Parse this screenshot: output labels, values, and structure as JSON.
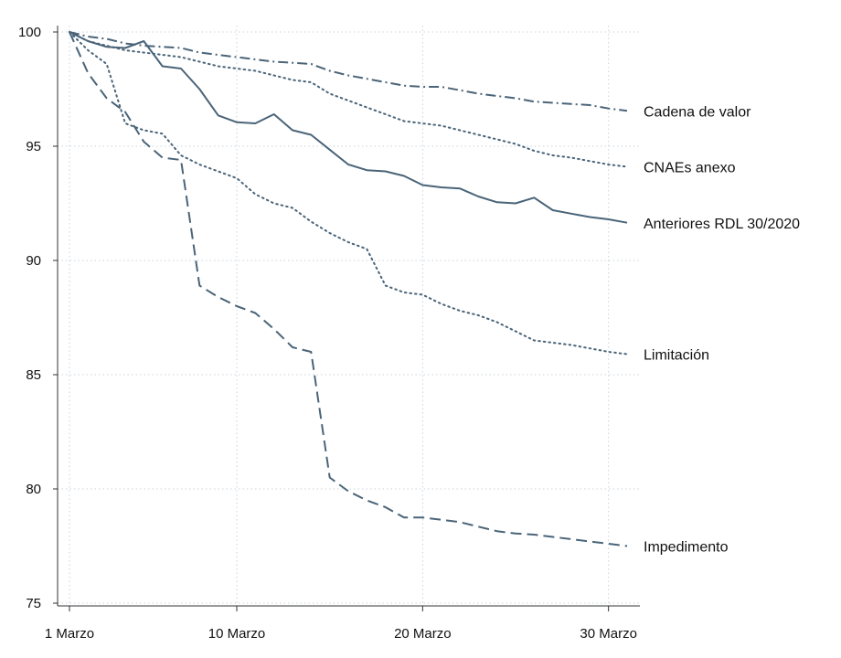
{
  "chart_data": {
    "type": "line",
    "title": "",
    "xlabel": "",
    "ylabel": "",
    "xlim": [
      1,
      31
    ],
    "ylim": [
      75,
      100
    ],
    "yticks": [
      75,
      80,
      85,
      90,
      95,
      100
    ],
    "xticks": [
      {
        "value": 1,
        "label": "1 Marzo"
      },
      {
        "value": 10,
        "label": "10 Marzo"
      },
      {
        "value": 20,
        "label": "20 Marzo"
      },
      {
        "value": 30,
        "label": "30 Marzo"
      }
    ],
    "grid": true,
    "legend": "labels at right end of lines",
    "series_color": "#4a6478",
    "x": [
      1,
      2,
      3,
      4,
      5,
      6,
      7,
      8,
      9,
      10,
      11,
      12,
      13,
      14,
      15,
      16,
      17,
      18,
      19,
      20,
      21,
      22,
      23,
      24,
      25,
      26,
      27,
      28,
      29,
      30,
      31
    ],
    "series": [
      {
        "name": "Cadena de valor",
        "style": "dashdot",
        "values": [
          100,
          99.8,
          99.7,
          99.5,
          99.4,
          99.35,
          99.3,
          99.1,
          99.0,
          98.9,
          98.8,
          98.7,
          98.65,
          98.6,
          98.3,
          98.1,
          97.95,
          97.8,
          97.65,
          97.6,
          97.6,
          97.45,
          97.3,
          97.2,
          97.1,
          96.95,
          96.9,
          96.85,
          96.8,
          96.65,
          96.55
        ]
      },
      {
        "name": "CNAEs anexo",
        "style": "dotted",
        "values": [
          100,
          99.6,
          99.4,
          99.2,
          99.1,
          99.0,
          98.9,
          98.7,
          98.5,
          98.4,
          98.3,
          98.1,
          97.9,
          97.8,
          97.3,
          97.0,
          96.7,
          96.4,
          96.1,
          96.0,
          95.9,
          95.7,
          95.5,
          95.3,
          95.1,
          94.8,
          94.6,
          94.5,
          94.35,
          94.2,
          94.1
        ]
      },
      {
        "name": "Anteriores RDL 30/2020",
        "style": "solid",
        "values": [
          100,
          99.6,
          99.35,
          99.3,
          99.6,
          98.5,
          98.4,
          97.5,
          96.35,
          96.05,
          96.0,
          96.4,
          95.7,
          95.5,
          94.85,
          94.2,
          93.95,
          93.9,
          93.7,
          93.3,
          93.2,
          93.15,
          92.8,
          92.55,
          92.5,
          92.75,
          92.2,
          92.05,
          91.9,
          91.8,
          91.65
        ]
      },
      {
        "name": "Limitación",
        "style": "dotted",
        "values": [
          100,
          99.2,
          98.6,
          96.0,
          95.7,
          95.55,
          94.6,
          94.2,
          93.9,
          93.6,
          92.9,
          92.5,
          92.3,
          91.7,
          91.2,
          90.8,
          90.5,
          88.9,
          88.6,
          88.5,
          88.1,
          87.8,
          87.6,
          87.3,
          86.9,
          86.5,
          86.4,
          86.3,
          86.15,
          86.0,
          85.9
        ]
      },
      {
        "name": "Impedimento",
        "style": "dashed",
        "values": [
          100,
          98.2,
          97.1,
          96.5,
          95.2,
          94.5,
          94.4,
          88.9,
          88.4,
          88.0,
          87.7,
          87.0,
          86.2,
          86.0,
          80.5,
          79.9,
          79.5,
          79.2,
          78.75,
          78.75,
          78.65,
          78.55,
          78.35,
          78.15,
          78.05,
          78.0,
          77.9,
          77.8,
          77.7,
          77.6,
          77.5
        ]
      }
    ]
  }
}
